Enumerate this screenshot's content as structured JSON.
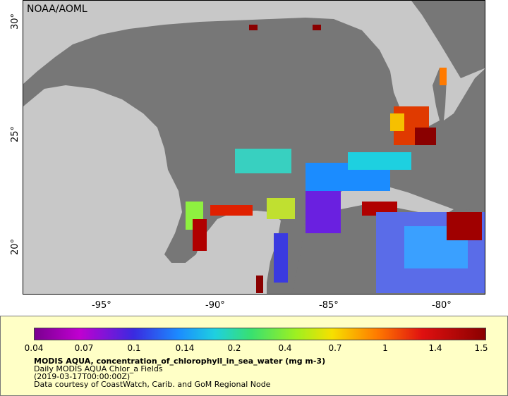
{
  "map": {
    "provider": "NOAA/AOML",
    "lat_labels": [
      "30°",
      "25°",
      "20°"
    ],
    "lon_labels": [
      "-95°",
      "-90°",
      "-85°",
      "-80°"
    ],
    "colors": {
      "land": "#c8c8c8",
      "ocean_no_data": "#777777"
    }
  },
  "legend": {
    "ticks": [
      "0.04",
      "0.07",
      "0.1",
      "0.14",
      "0.2",
      "0.4",
      "0.7",
      "1",
      "1.4",
      "1.5"
    ],
    "title": "MODIS AQUA, concentration_of_chlorophyll_in_sea_water (mg m-3)",
    "line1": "Daily MODIS AQUA Chlor_a Fields",
    "line2": "(2019-03-17T00:00:00Z)",
    "line3": "Data courtesy of CoastWatch, Carib. and GoM Regional Node"
  }
}
